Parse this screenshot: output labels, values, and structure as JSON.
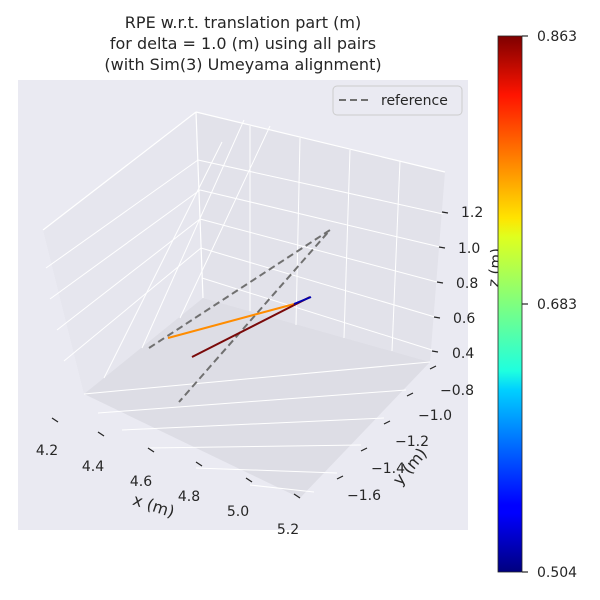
{
  "chart_data": {
    "type": "line3d",
    "title_lines": [
      "RPE w.r.t. translation part (m)",
      "for delta = 1.0 (m) using all pairs",
      "(with Sim(3) Umeyama alignment)"
    ],
    "xlabel": "x (m)",
    "ylabel": "y (m)",
    "zlabel": "z (m)",
    "x_ticks": [
      "4.2",
      "4.4",
      "4.6",
      "4.8",
      "5.0",
      "5.2"
    ],
    "y_ticks": [
      "−0.8",
      "−1.0",
      "−1.2",
      "−1.4",
      "−1.6"
    ],
    "z_ticks": [
      "1.2",
      "1.0",
      "0.8",
      "0.6",
      "0.4"
    ],
    "xlim": [
      4.2,
      5.2
    ],
    "ylim": [
      -1.7,
      -0.7
    ],
    "zlim": [
      0.4,
      1.3
    ],
    "legend": {
      "location": "top-right",
      "entries": [
        "reference"
      ]
    },
    "colorbar": {
      "colormap": "jet",
      "min": 0.504,
      "max": 0.863,
      "ticks": [
        "0.863",
        "0.683",
        "0.504"
      ]
    },
    "series": [
      {
        "name": "reference",
        "style": "dashed",
        "color": "#707070",
        "points": [
          [
            4.55,
            -1.15,
            0.7
          ],
          [
            5.2,
            -1.0,
            1.25
          ],
          [
            4.6,
            -1.62,
            0.35
          ]
        ]
      }
    ],
    "error_segments": [
      {
        "from": [
          4.5,
          -1.05,
          0.55
        ],
        "to": [
          5.15,
          -1.1,
          0.9
        ],
        "rpe": 0.73,
        "color": "#ff8c00"
      },
      {
        "from": [
          5.15,
          -1.1,
          0.9
        ],
        "to": [
          4.7,
          -1.4,
          0.5
        ],
        "rpe": 0.82,
        "color": "#7a0a0a"
      }
    ]
  }
}
